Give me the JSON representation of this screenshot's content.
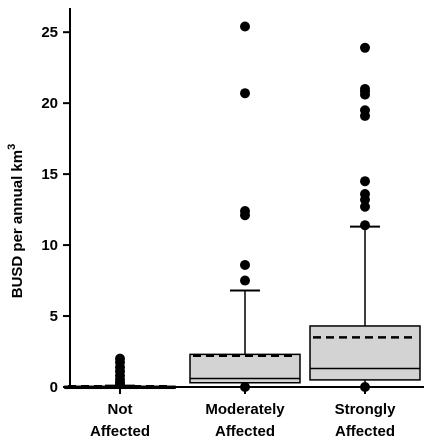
{
  "chart_data": {
    "type": "box",
    "ylabel": "BUSD per annual km",
    "ylabel_superscript": "3",
    "ylim": [
      0,
      26
    ],
    "yticks": [
      0,
      5,
      10,
      15,
      20,
      25
    ],
    "mean_line_style": "dashed",
    "median_line_style": "solid",
    "box_fill": "#d3d3d3",
    "categories": [
      {
        "label_line1": "Not",
        "label_line2": "Affected"
      },
      {
        "label_line1": "Moderately",
        "label_line2": "Affected"
      },
      {
        "label_line1": "Strongly",
        "label_line2": "Affected"
      }
    ],
    "boxes": [
      {
        "min": 0.0,
        "q1": 0.0,
        "median": 0.0,
        "q3": 0.05,
        "max": 0.1,
        "mean": 0.05,
        "outliers": [
          0.2,
          0.35,
          0.55,
          0.8,
          1.1,
          1.4,
          1.75,
          2.0
        ]
      },
      {
        "min": 0.0,
        "q1": 0.3,
        "median": 0.6,
        "q3": 2.3,
        "max": 6.8,
        "mean": 2.2,
        "outliers": [
          0.0,
          7.5,
          8.6,
          12.1,
          12.4,
          20.7,
          25.4
        ]
      },
      {
        "min": 0.0,
        "q1": 0.5,
        "median": 1.3,
        "q3": 4.3,
        "max": 11.3,
        "mean": 3.5,
        "outliers": [
          0.0,
          11.4,
          12.7,
          13.2,
          13.6,
          14.5,
          19.1,
          19.5,
          20.6,
          20.8,
          21.0,
          23.9
        ]
      }
    ]
  }
}
